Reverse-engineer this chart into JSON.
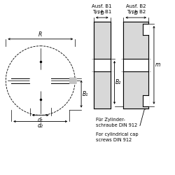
{
  "bg_color": "#ffffff",
  "line_color": "#000000",
  "title_b1": "Ausf. B1\nType B1",
  "title_b2": "Ausf. B2\nType B2",
  "label_R": "R",
  "label_b": "b",
  "label_B1": "B₁",
  "label_B2": "B₂",
  "label_d1": "d₁",
  "label_d2": "d₂",
  "label_m": "m",
  "text_de": "Für Zylinder-\nschraube DIN 912",
  "text_en": "For cylindrical cap\nscrews DIN 912",
  "font_size_label": 5.5,
  "font_size_title": 5.0,
  "font_size_annot": 4.8
}
